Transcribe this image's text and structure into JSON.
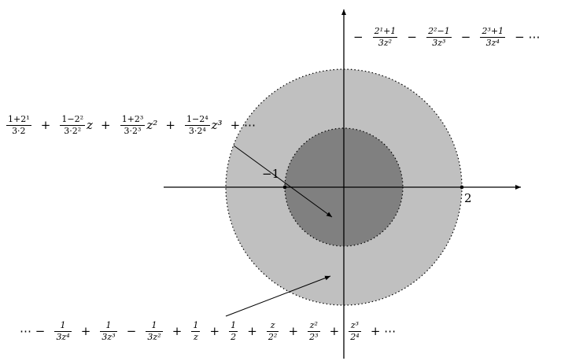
{
  "colors": {
    "outer_disc": "#c0c0c0",
    "inner_disc": "#808080",
    "axis": "#000000",
    "boundary": "#000000"
  },
  "point_labels": {
    "minus_one": "−1",
    "two": "2"
  },
  "series_top": {
    "lead": "−",
    "t1_num": "2¹+1",
    "t1_den": "3z²",
    "op1": "−",
    "t2_num": "2²−1",
    "t2_den": "3z³",
    "op2": "−",
    "t3_num": "2³+1",
    "t3_den": "3z⁴",
    "tail": "− ⋯"
  },
  "series_left": {
    "t1_num": "1+2¹",
    "t1_den": "3·2",
    "op1": "+",
    "t2_num": "1−2²",
    "t2_den": "3·2²",
    "t2_var": "z",
    "op2": "+",
    "t3_num": "1+2³",
    "t3_den": "3·2³",
    "t3_var": "z²",
    "op3": "+",
    "t4_num": "1−2⁴",
    "t4_den": "3·2⁴",
    "t4_var": "z³",
    "tail": "+ ⋯"
  },
  "series_bottom": {
    "lead": "⋯ −",
    "t1_num": "1",
    "t1_den": "3z⁴",
    "op1": "+",
    "t2_num": "1",
    "t2_den": "3z³",
    "op2": "−",
    "t3_num": "1",
    "t3_den": "3z²",
    "op3": "+",
    "t4_num": "1",
    "t4_den": "z",
    "op4": "+",
    "t5_num": "1",
    "t5_den": "2",
    "op5": "+",
    "t6_num": "z",
    "t6_den": "2²",
    "op6": "+",
    "t7_num": "z²",
    "t7_den": "2³",
    "op7": "+",
    "t8_num": "z³",
    "t8_den": "2⁴",
    "tail": "+ ⋯"
  }
}
